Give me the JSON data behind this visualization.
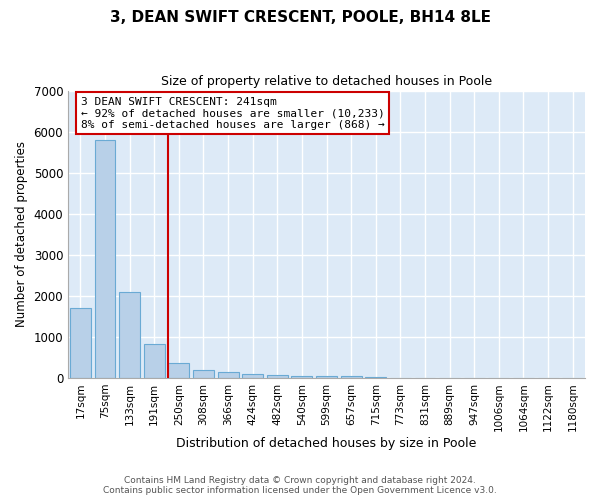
{
  "title1": "3, DEAN SWIFT CRESCENT, POOLE, BH14 8LE",
  "title2": "Size of property relative to detached houses in Poole",
  "xlabel": "Distribution of detached houses by size in Poole",
  "ylabel": "Number of detached properties",
  "footnote": "Contains HM Land Registry data © Crown copyright and database right 2024.\nContains public sector information licensed under the Open Government Licence v3.0.",
  "bin_labels": [
    "17sqm",
    "75sqm",
    "133sqm",
    "191sqm",
    "250sqm",
    "308sqm",
    "366sqm",
    "424sqm",
    "482sqm",
    "540sqm",
    "599sqm",
    "657sqm",
    "715sqm",
    "773sqm",
    "831sqm",
    "889sqm",
    "947sqm",
    "1006sqm",
    "1064sqm",
    "1122sqm",
    "1180sqm"
  ],
  "bar_values": [
    1700,
    5800,
    2100,
    830,
    350,
    200,
    140,
    90,
    80,
    50,
    50,
    50,
    30,
    0,
    0,
    0,
    0,
    0,
    0,
    0,
    0
  ],
  "bar_color": "#b8d0e8",
  "bar_edge_color": "#6aaad4",
  "background_color": "#ddeaf7",
  "grid_color": "#ffffff",
  "vline_color": "#cc0000",
  "annotation_text": "3 DEAN SWIFT CRESCENT: 241sqm\n← 92% of detached houses are smaller (10,233)\n8% of semi-detached houses are larger (868) →",
  "annotation_box_color": "#cc0000",
  "ylim": [
    0,
    7000
  ],
  "yticks": [
    0,
    1000,
    2000,
    3000,
    4000,
    5000,
    6000,
    7000
  ],
  "figsize": [
    6.0,
    5.0
  ],
  "dpi": 100
}
